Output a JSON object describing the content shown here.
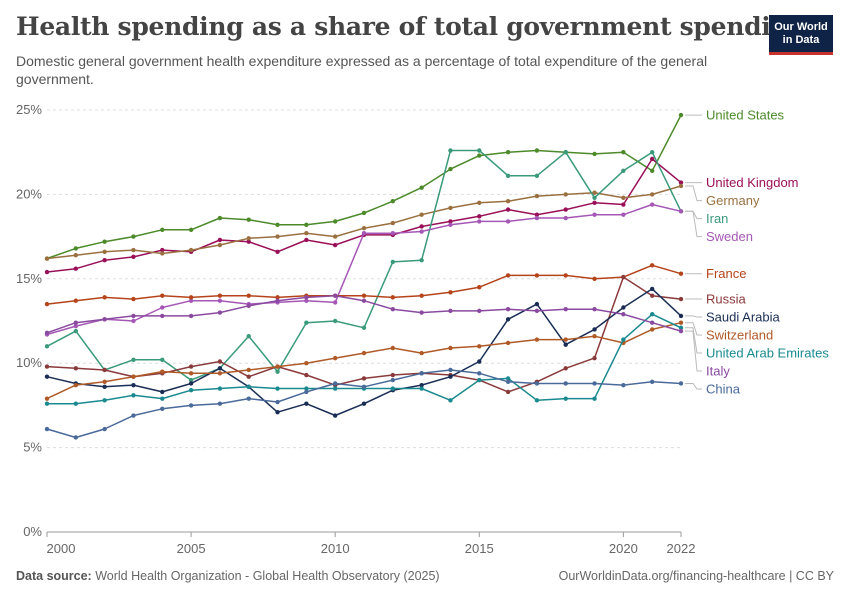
{
  "header": {
    "title": "Health spending as a share of total government spending",
    "subtitle": "Domestic general government health expenditure expressed as a percentage of total expenditure of the general government.",
    "logo_line1": "Our World",
    "logo_line2": "in Data"
  },
  "footer": {
    "source_label": "Data source:",
    "source_text": "World Health Organization - Global Health Observatory (2025)",
    "url": "OurWorldinData.org/financing-healthcare | CC BY"
  },
  "chart_data": {
    "type": "line",
    "xlim": [
      2000,
      2022
    ],
    "ylim": [
      0,
      25
    ],
    "x_ticks": [
      2000,
      2005,
      2010,
      2015,
      2020,
      2022
    ],
    "y_ticks": [
      0,
      5,
      10,
      15,
      20,
      25
    ],
    "y_tick_labels": [
      "0%",
      "5%",
      "10%",
      "15%",
      "20%",
      "25%"
    ],
    "grid": "horizontal-dashed",
    "legend": "right-end-labels",
    "x": [
      2000,
      2001,
      2002,
      2003,
      2004,
      2005,
      2006,
      2007,
      2008,
      2009,
      2010,
      2011,
      2012,
      2013,
      2014,
      2015,
      2016,
      2017,
      2018,
      2019,
      2020,
      2021,
      2022
    ],
    "series": [
      {
        "name": "United States",
        "color": "#4c8a2a",
        "values": [
          16.2,
          16.8,
          17.2,
          17.5,
          17.9,
          17.9,
          18.6,
          18.5,
          18.2,
          18.2,
          18.4,
          18.9,
          19.6,
          20.4,
          21.5,
          22.3,
          22.5,
          22.6,
          22.5,
          22.4,
          22.5,
          21.4,
          24.7
        ]
      },
      {
        "name": "United Kingdom",
        "color": "#9a1058",
        "values": [
          15.4,
          15.6,
          16.1,
          16.3,
          16.7,
          16.6,
          17.3,
          17.2,
          16.6,
          17.3,
          17.0,
          17.6,
          17.6,
          18.1,
          18.4,
          18.7,
          19.1,
          18.8,
          19.1,
          19.5,
          19.4,
          22.1,
          20.7
        ]
      },
      {
        "name": "Germany",
        "color": "#9a7040",
        "values": [
          16.2,
          16.4,
          16.6,
          16.7,
          16.5,
          16.7,
          17.0,
          17.4,
          17.5,
          17.7,
          17.5,
          18.0,
          18.3,
          18.8,
          19.2,
          19.5,
          19.6,
          19.9,
          20.0,
          20.1,
          19.8,
          20.0,
          20.5
        ]
      },
      {
        "name": "Iran",
        "color": "#3a9a7a",
        "values": [
          11.0,
          11.9,
          9.6,
          10.2,
          10.2,
          9.0,
          9.7,
          11.6,
          9.5,
          12.4,
          12.5,
          12.1,
          16.0,
          16.1,
          22.6,
          22.6,
          21.1,
          21.1,
          22.5,
          19.8,
          21.4,
          22.5,
          19.0
        ]
      },
      {
        "name": "Sweden",
        "color": "#a557b5",
        "values": [
          11.7,
          12.2,
          12.6,
          12.5,
          13.3,
          13.7,
          13.7,
          13.5,
          13.6,
          13.7,
          13.6,
          17.7,
          17.7,
          17.8,
          18.2,
          18.4,
          18.4,
          18.6,
          18.6,
          18.8,
          18.8,
          19.4,
          19.0
        ]
      },
      {
        "name": "France",
        "color": "#b5441a",
        "values": [
          13.5,
          13.7,
          13.9,
          13.8,
          14.0,
          13.9,
          14.0,
          14.0,
          13.9,
          14.0,
          14.0,
          14.0,
          13.9,
          14.0,
          14.2,
          14.5,
          15.2,
          15.2,
          15.2,
          15.0,
          15.1,
          15.8,
          15.3
        ]
      },
      {
        "name": "Russia",
        "color": "#8a3a3a",
        "values": [
          9.8,
          9.7,
          9.6,
          9.2,
          9.4,
          9.8,
          10.1,
          9.2,
          9.8,
          9.3,
          8.7,
          9.1,
          9.3,
          9.4,
          9.3,
          9.0,
          8.3,
          8.9,
          9.7,
          10.3,
          15.1,
          14.0,
          13.8
        ]
      },
      {
        "name": "Saudi Arabia",
        "color": "#1a2e55",
        "values": [
          9.2,
          8.8,
          8.6,
          8.7,
          8.3,
          8.8,
          9.7,
          8.6,
          7.1,
          7.6,
          6.9,
          7.6,
          8.4,
          8.7,
          9.2,
          10.1,
          12.6,
          13.5,
          11.1,
          12.0,
          13.3,
          14.4,
          12.8
        ]
      },
      {
        "name": "Switzerland",
        "color": "#b05a28",
        "values": [
          7.9,
          8.7,
          8.9,
          9.2,
          9.5,
          9.4,
          9.4,
          9.6,
          9.8,
          10.0,
          10.3,
          10.6,
          10.9,
          10.6,
          10.9,
          11.0,
          11.2,
          11.4,
          11.4,
          11.6,
          11.2,
          12.0,
          12.4
        ]
      },
      {
        "name": "United Arab Emirates",
        "color": "#1a8a90",
        "values": [
          7.6,
          7.6,
          7.8,
          8.1,
          7.9,
          8.4,
          8.5,
          8.6,
          8.5,
          8.5,
          8.5,
          8.5,
          8.5,
          8.5,
          7.8,
          9.0,
          9.1,
          7.8,
          7.9,
          7.9,
          11.4,
          12.9,
          12.1
        ]
      },
      {
        "name": "Italy",
        "color": "#8a4aa0",
        "values": [
          11.8,
          12.4,
          12.6,
          12.8,
          12.8,
          12.8,
          13.0,
          13.4,
          13.7,
          13.9,
          14.0,
          13.7,
          13.2,
          13.0,
          13.1,
          13.1,
          13.2,
          13.1,
          13.2,
          13.2,
          12.9,
          12.4,
          11.9
        ]
      },
      {
        "name": "China",
        "color": "#4a6a9a",
        "values": [
          6.1,
          5.6,
          6.1,
          6.9,
          7.3,
          7.5,
          7.6,
          7.9,
          7.7,
          8.3,
          8.8,
          8.6,
          9.0,
          9.4,
          9.6,
          9.4,
          8.9,
          8.8,
          8.8,
          8.8,
          8.7,
          8.9,
          8.8
        ]
      }
    ]
  }
}
